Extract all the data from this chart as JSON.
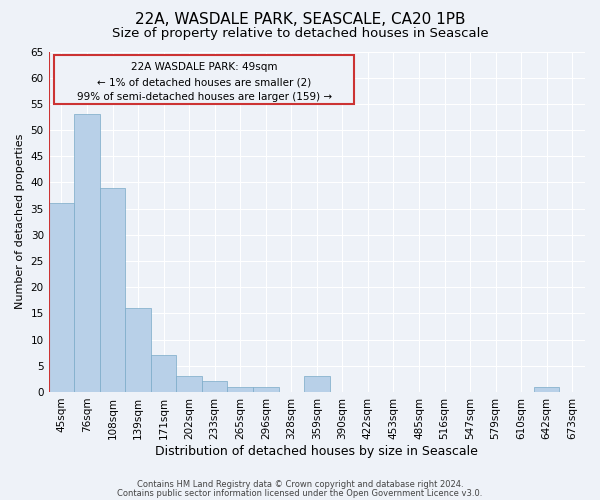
{
  "title1": "22A, WASDALE PARK, SEASCALE, CA20 1PB",
  "title2": "Size of property relative to detached houses in Seascale",
  "xlabel": "Distribution of detached houses by size in Seascale",
  "ylabel": "Number of detached properties",
  "categories": [
    "45sqm",
    "76sqm",
    "108sqm",
    "139sqm",
    "171sqm",
    "202sqm",
    "233sqm",
    "265sqm",
    "296sqm",
    "328sqm",
    "359sqm",
    "390sqm",
    "422sqm",
    "453sqm",
    "485sqm",
    "516sqm",
    "547sqm",
    "579sqm",
    "610sqm",
    "642sqm",
    "673sqm"
  ],
  "values": [
    36,
    53,
    39,
    16,
    7,
    3,
    2,
    1,
    1,
    0,
    3,
    0,
    0,
    0,
    0,
    0,
    0,
    0,
    0,
    1,
    0
  ],
  "bar_color": "#b8d0e8",
  "bar_edge_color": "#7aaac8",
  "highlight_color": "#cc3333",
  "ylim": [
    0,
    65
  ],
  "yticks": [
    0,
    5,
    10,
    15,
    20,
    25,
    30,
    35,
    40,
    45,
    50,
    55,
    60,
    65
  ],
  "annotation_text1": "22A WASDALE PARK: 49sqm",
  "annotation_text2": "← 1% of detached houses are smaller (2)",
  "annotation_text3": "99% of semi-detached houses are larger (159) →",
  "footer1": "Contains HM Land Registry data © Crown copyright and database right 2024.",
  "footer2": "Contains public sector information licensed under the Open Government Licence v3.0.",
  "bg_color": "#eef2f8",
  "grid_color": "#ffffff",
  "title1_fontsize": 11,
  "title2_fontsize": 9.5,
  "xlabel_fontsize": 9,
  "ylabel_fontsize": 8,
  "tick_fontsize": 7.5,
  "annot_fontsize": 7.5,
  "footer_fontsize": 6
}
